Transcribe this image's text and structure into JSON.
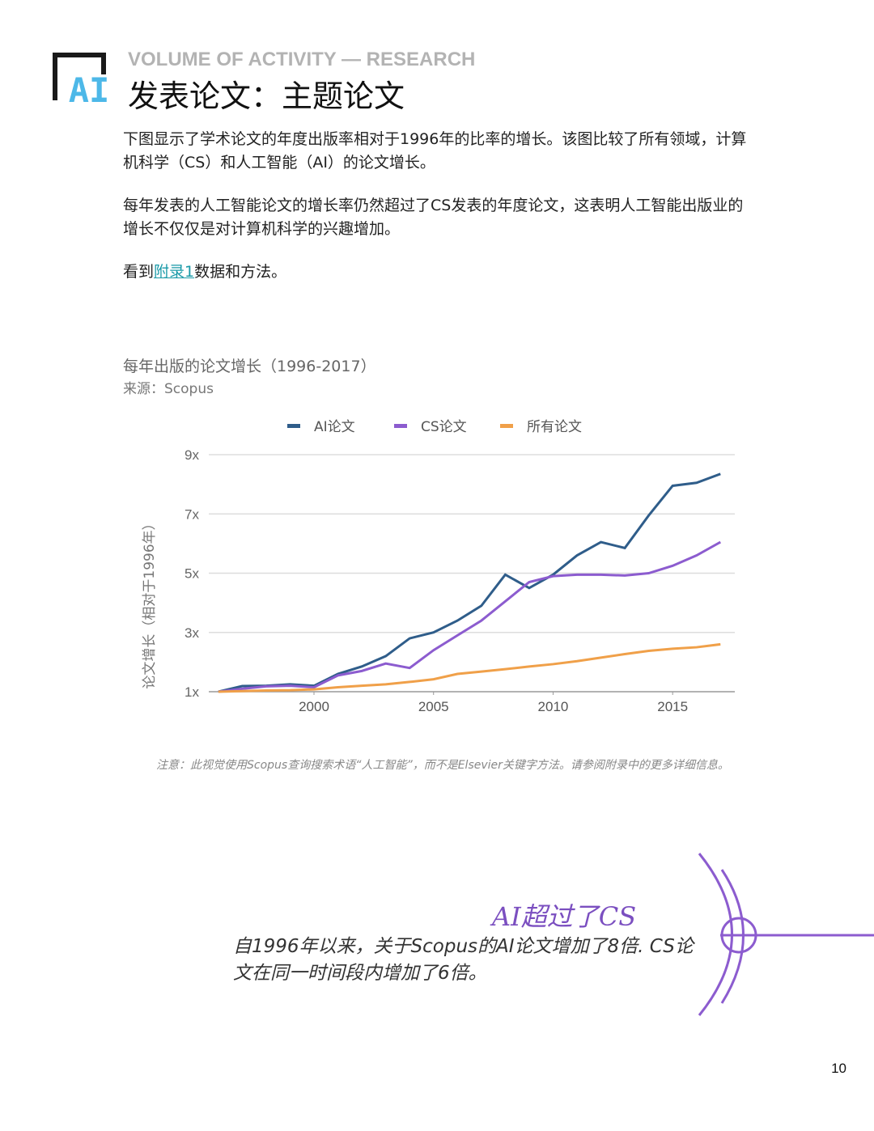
{
  "logo": "AI",
  "header": {
    "kicker": "VOLUME OF ACTIVITY — RESEARCH",
    "title": "发表论文：主题论文"
  },
  "paragraphs": [
    "下图显示了学术论文的年度出版率相对于1996年的比率的增长。该图比较了所有领域，计算机科学（CS）和人工智能（AI）的论文增长。",
    "每年发表的人工智能论文的增长率仍然超过了CS发表的年度论文，这表明人工智能出版业的增长不仅仅是对计算机科学的兴趣增加。"
  ],
  "see": {
    "before": "看到",
    "link": "附录1",
    "after": "数据和方法。"
  },
  "chart_data": {
    "type": "line",
    "title": "每年出版的论文增长（1996-2017）",
    "source": "来源：Scopus",
    "y_label": "论文增长（相对于1996年）",
    "x": [
      1996,
      1997,
      1998,
      1999,
      2000,
      2001,
      2002,
      2003,
      2004,
      2005,
      2006,
      2007,
      2008,
      2009,
      2010,
      2011,
      2012,
      2013,
      2014,
      2015,
      2016,
      2017
    ],
    "series": [
      {
        "name": "AI论文",
        "color": "#2f5d8a",
        "values": [
          1.0,
          1.19,
          1.2,
          1.25,
          1.2,
          1.6,
          1.85,
          2.2,
          2.8,
          3.0,
          3.4,
          3.9,
          4.95,
          4.5,
          4.95,
          5.6,
          6.05,
          5.85,
          6.95,
          7.95,
          8.05,
          8.35
        ]
      },
      {
        "name": "CS论文",
        "color": "#8c5ccf",
        "values": [
          1.0,
          1.1,
          1.18,
          1.2,
          1.15,
          1.55,
          1.7,
          1.95,
          1.8,
          2.4,
          2.9,
          3.4,
          4.05,
          4.7,
          4.9,
          4.95,
          4.95,
          4.92,
          5.0,
          5.25,
          5.6,
          6.05
        ]
      },
      {
        "name": "所有论文",
        "color": "#f0a049",
        "values": [
          1.0,
          1.02,
          1.04,
          1.05,
          1.08,
          1.15,
          1.2,
          1.25,
          1.33,
          1.42,
          1.6,
          1.68,
          1.76,
          1.85,
          1.93,
          2.03,
          2.15,
          2.27,
          2.38,
          2.45,
          2.5,
          2.6
        ]
      }
    ],
    "xlim": [
      1995.6,
      2017.6
    ],
    "xticks": [
      2000,
      2005,
      2010,
      2015
    ],
    "ylim": [
      1,
      9
    ],
    "yticks": [
      {
        "value": 1,
        "label": "1x"
      },
      {
        "value": 3,
        "label": "3x"
      },
      {
        "value": 5,
        "label": "5x"
      },
      {
        "value": 7,
        "label": "7x"
      },
      {
        "value": 9,
        "label": "9x"
      }
    ],
    "grid": true,
    "legend": "top"
  },
  "note": "注意：此视觉使用Scopus查询搜索术语“人工智能”，而不是Elsevier关键字方法。请参阅附录中的更多详细信息。",
  "callout": {
    "title": "AI超过了CS",
    "text": "自1996年以来，关于Scopus的AI论文增加了8倍. CS论文在同一时间段内增加了6倍。"
  },
  "page_number": "10"
}
